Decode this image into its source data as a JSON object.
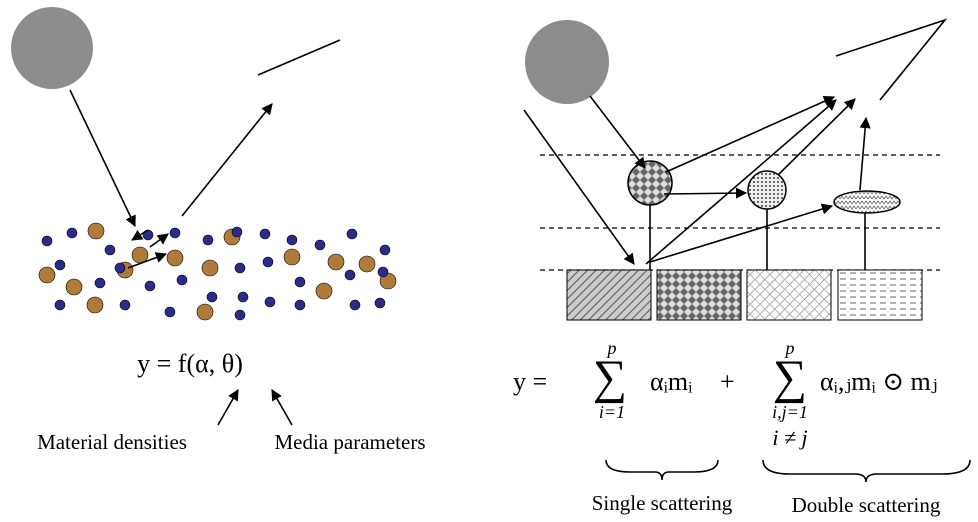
{
  "left_panel": {
    "equation": "y = f(α, θ)",
    "labels": [
      "Material densities",
      "Media parameters"
    ]
  },
  "right_panel": {
    "equation": {
      "lhs": "y =",
      "sum_1": {
        "operator": "∑",
        "upper": "p",
        "lower": "i=1",
        "term": "αᵢmᵢ"
      },
      "plus": "+",
      "sum_2": {
        "operator": "∑",
        "upper": "p",
        "lower": "i,j=1",
        "condition": "i ≠ j",
        "term": "αᵢ,ⱼmᵢ ⊙ mⱼ"
      }
    },
    "labels": [
      "Single scattering",
      "Double scattering"
    ]
  }
}
